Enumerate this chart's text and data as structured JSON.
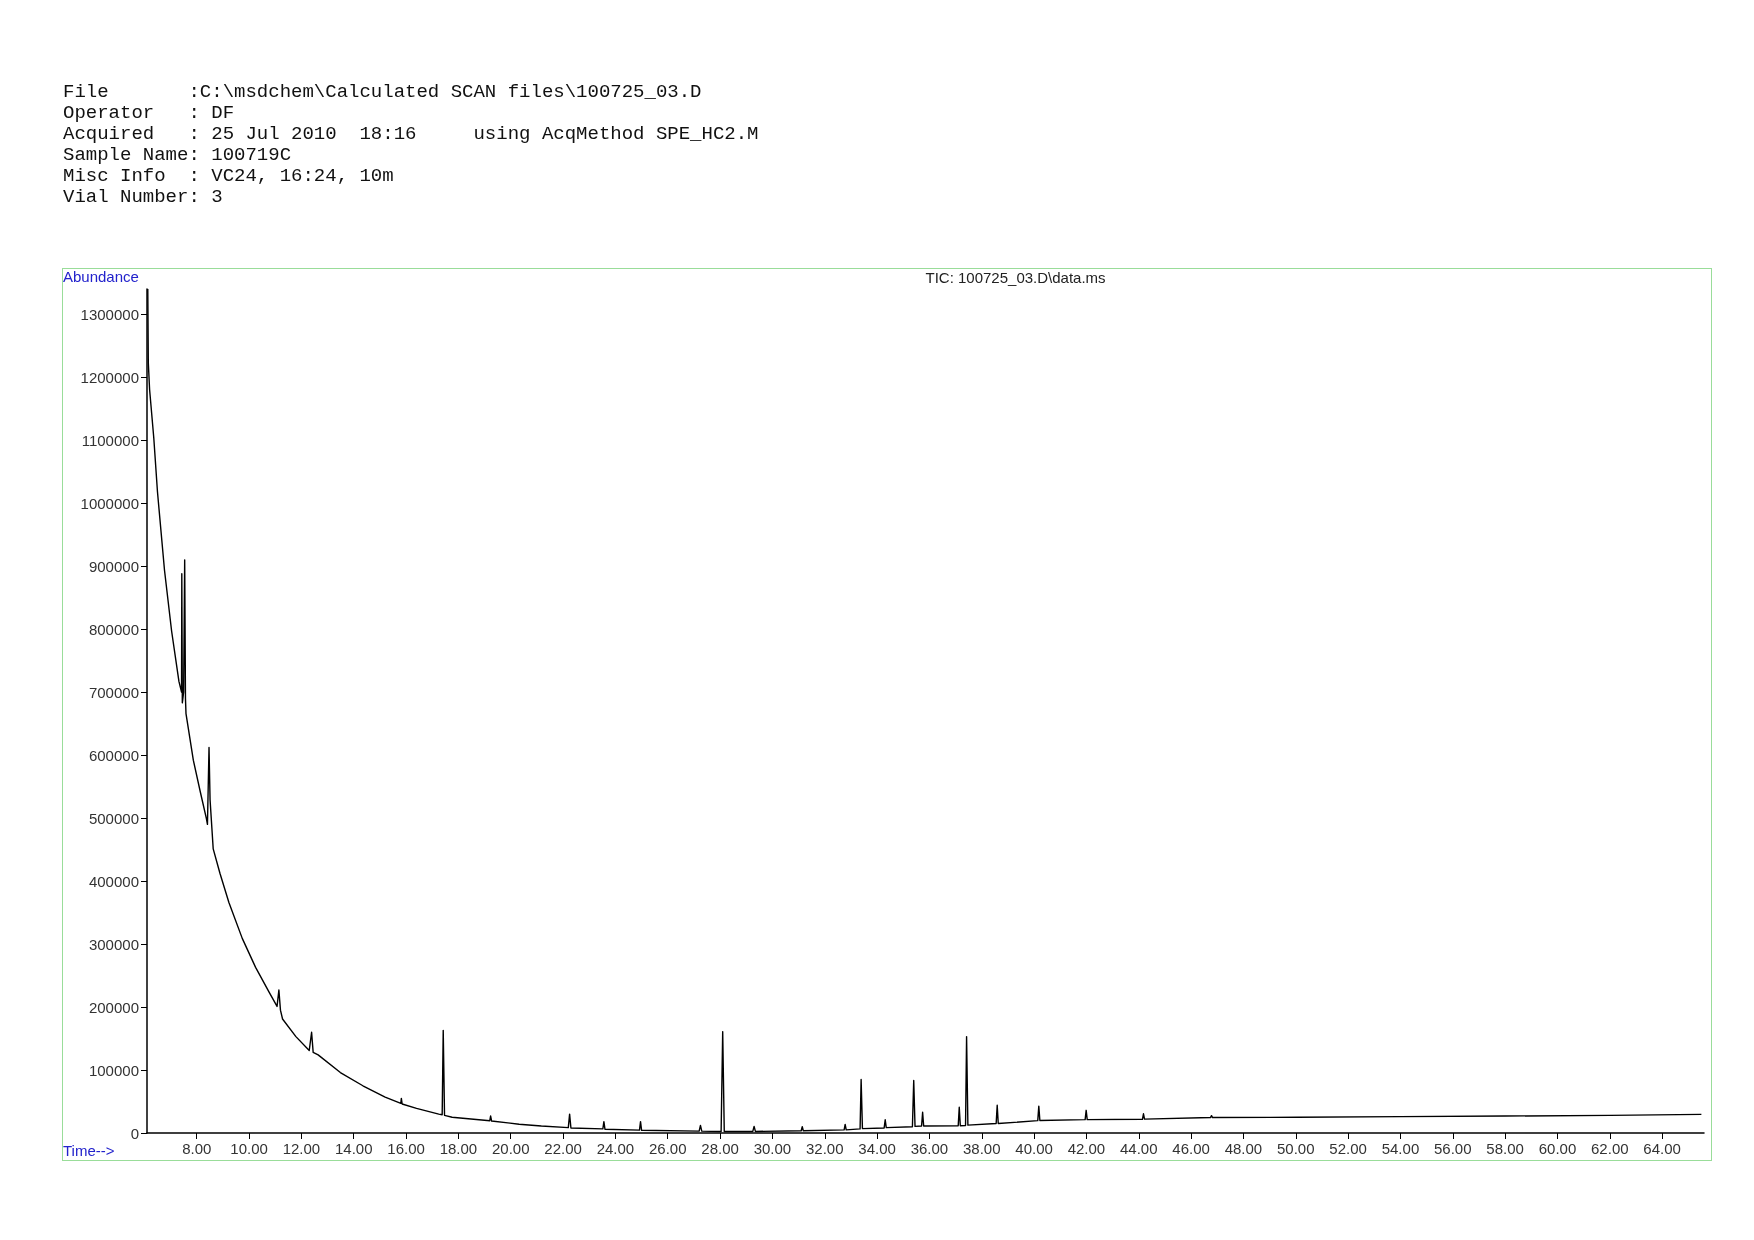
{
  "chart_data": {
    "type": "line",
    "title": "TIC: 100725_03.D\\data.ms",
    "xlabel": "Time-->",
    "ylabel": "Abundance",
    "annotations": [
      "File       :C:\\msdchem\\Calculated SCAN files\\100725_03.D",
      "Operator   : DF",
      "Acquired   : 25 Jul 2010  18:16     using AcqMethod SPE_HC2.M",
      "Sample Name: 100719C",
      "Misc Info  : VC24, 16:24, 10m",
      "Vial Number: 3"
    ],
    "x": [
      6.13,
      6.15,
      6.2,
      6.36,
      6.5,
      6.77,
      7.04,
      7.32,
      7.42,
      7.43,
      7.45,
      7.5,
      7.54,
      7.57,
      7.59,
      7.87,
      8.14,
      8.37,
      8.41,
      8.47,
      8.51,
      8.63,
      8.89,
      9.23,
      9.74,
      10.25,
      10.76,
      11.07,
      11.14,
      11.2,
      11.28,
      11.79,
      12.3,
      12.39,
      12.45,
      12.64,
      13.49,
      14.35,
      15.2,
      15.8,
      15.82,
      15.85,
      16.4,
      17.25,
      17.38,
      17.42,
      17.47,
      17.76,
      19.2,
      19.23,
      19.27,
      20.32,
      21.17,
      22.2,
      22.25,
      22.3,
      23.52,
      23.56,
      23.6,
      24.92,
      24.96,
      25,
      27.2,
      27.25,
      27.3,
      28.04,
      28.1,
      28.16,
      29.25,
      29.3,
      29.35,
      31.1,
      31.14,
      31.18,
      32.74,
      32.78,
      32.82,
      33.35,
      33.39,
      33.44,
      34.27,
      34.31,
      34.35,
      35.35,
      35.4,
      35.45,
      35.7,
      35.74,
      35.78,
      37.1,
      37.14,
      37.18,
      37.38,
      37.42,
      37.47,
      38.55,
      38.59,
      38.63,
      40.14,
      40.18,
      40.22,
      41.95,
      41.99,
      42.03,
      44.14,
      44.18,
      44.22,
      46.74,
      46.78,
      46.82,
      50.07,
      54,
      58,
      62,
      65.5
    ],
    "values": [
      1340000,
      1223000,
      1180000,
      1103000,
      1018000,
      893000,
      797000,
      717000,
      700000,
      888000,
      683000,
      700000,
      910000,
      690000,
      666000,
      592000,
      541000,
      499000,
      490000,
      612000,
      529000,
      451000,
      412000,
      366000,
      309000,
      263000,
      224000,
      201000,
      227000,
      195000,
      181000,
      153000,
      131000,
      160000,
      128000,
      124000,
      96000,
      75000,
      57000,
      47000,
      55000,
      46000,
      39000,
      30000,
      29000,
      163000,
      28000,
      25000,
      19500,
      27000,
      19000,
      14000,
      11000,
      8500,
      30000,
      8000,
      6500,
      18000,
      6000,
      4500,
      18000,
      4300,
      3000,
      12000,
      3000,
      2500,
      161000,
      2500,
      2500,
      10500,
      2500,
      3500,
      10000,
      3500,
      5000,
      13500,
      5000,
      6500,
      85000,
      7000,
      8000,
      21000,
      8500,
      10000,
      83500,
      10500,
      11000,
      33000,
      11000,
      11600,
      41000,
      11600,
      12000,
      153000,
      12500,
      15000,
      44000,
      15000,
      19600,
      42600,
      19800,
      21300,
      36000,
      21300,
      21800,
      30500,
      22000,
      24500,
      27500,
      24500,
      25000,
      26000,
      26900,
      28000,
      29500
    ],
    "color": "#000000",
    "marker": "none",
    "grid": false,
    "xlim": [
      6.1,
      65.6
    ],
    "ylim": [
      0,
      1340000
    ],
    "xticks": [
      {
        "value": 8,
        "label": "8.00"
      },
      {
        "value": 10,
        "label": "10.00"
      },
      {
        "value": 12,
        "label": "12.00"
      },
      {
        "value": 14,
        "label": "14.00"
      },
      {
        "value": 16,
        "label": "16.00"
      },
      {
        "value": 18,
        "label": "18.00"
      },
      {
        "value": 20,
        "label": "20.00"
      },
      {
        "value": 22,
        "label": "22.00"
      },
      {
        "value": 24,
        "label": "24.00"
      },
      {
        "value": 26,
        "label": "26.00"
      },
      {
        "value": 28,
        "label": "28.00"
      },
      {
        "value": 30,
        "label": "30.00"
      },
      {
        "value": 32,
        "label": "32.00"
      },
      {
        "value": 34,
        "label": "34.00"
      },
      {
        "value": 36,
        "label": "36.00"
      },
      {
        "value": 38,
        "label": "38.00"
      },
      {
        "value": 40,
        "label": "40.00"
      },
      {
        "value": 42,
        "label": "42.00"
      },
      {
        "value": 44,
        "label": "44.00"
      },
      {
        "value": 46,
        "label": "46.00"
      },
      {
        "value": 48,
        "label": "48.00"
      },
      {
        "value": 50,
        "label": "50.00"
      },
      {
        "value": 52,
        "label": "52.00"
      },
      {
        "value": 54,
        "label": "54.00"
      },
      {
        "value": 56,
        "label": "56.00"
      },
      {
        "value": 58,
        "label": "58.00"
      },
      {
        "value": 60,
        "label": "60.00"
      },
      {
        "value": 62,
        "label": "62.00"
      },
      {
        "value": 64,
        "label": "64.00"
      }
    ],
    "yticks": [
      0,
      100000,
      200000,
      300000,
      400000,
      500000,
      600000,
      700000,
      800000,
      900000,
      1000000,
      1100000,
      1200000,
      1300000
    ]
  }
}
